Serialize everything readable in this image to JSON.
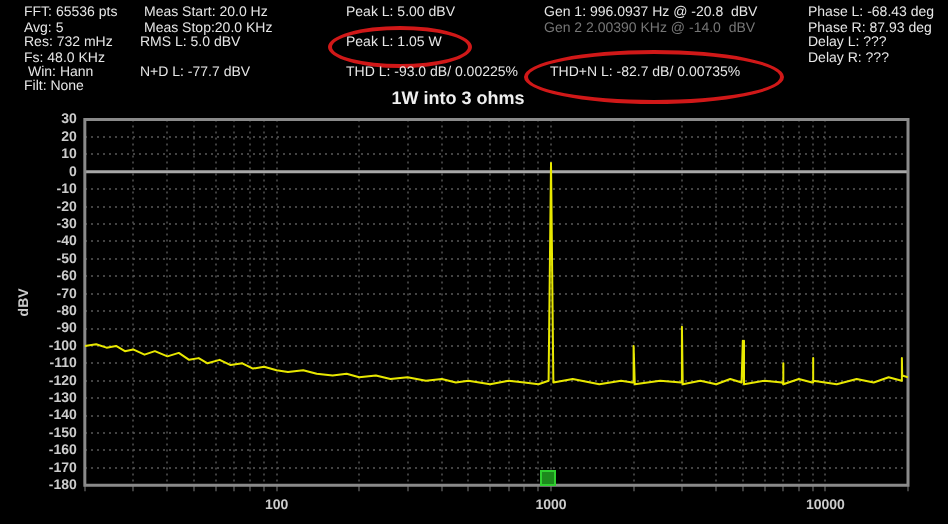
{
  "chart_data": {
    "type": "line",
    "title": "1W into 3 ohms",
    "ylabel": "dBV",
    "x": [
      20,
      22,
      24,
      26,
      28,
      30,
      33,
      36,
      40,
      44,
      48,
      52,
      56,
      62,
      68,
      75,
      82,
      90,
      100,
      110,
      125,
      140,
      160,
      180,
      200,
      230,
      260,
      300,
      350,
      400,
      450,
      500,
      600,
      700,
      800,
      900,
      980,
      1000,
      1020,
      1200,
      1500,
      1800,
      1980,
      2000,
      2020,
      2500,
      2980,
      3000,
      3020,
      3500,
      4000,
      4500,
      4950,
      5000,
      5050,
      6000,
      6950,
      7000,
      7050,
      8000,
      8950,
      9000,
      9050,
      11000,
      13000,
      15000,
      17000,
      18950,
      19000,
      19050,
      20000
    ],
    "series": [
      {
        "color": "#e8e800",
        "values": [
          -100,
          -99,
          -101,
          -100,
          -103,
          -102,
          -105,
          -103,
          -106,
          -104,
          -108,
          -107,
          -110,
          -108,
          -111,
          -110,
          -113,
          -112,
          -114,
          -115,
          -114,
          -116,
          -117,
          -116,
          -118,
          -117,
          -119,
          -118,
          -120,
          -119,
          -121,
          -120,
          -122,
          -120,
          -121,
          -122,
          -120,
          5,
          -121,
          -119,
          -122,
          -120,
          -121,
          -100,
          -122,
          -120,
          -121,
          -89,
          -122,
          -120,
          -122,
          -119,
          -121,
          -97,
          -122,
          -120,
          -121,
          -110,
          -122,
          -119,
          -121,
          -107,
          -120,
          -122,
          -119,
          -121,
          -118,
          -120,
          -107,
          -117,
          -118
        ]
      }
    ],
    "log": "x",
    "xlim": [
      20,
      20000
    ],
    "xticks": [
      {
        "value": 20,
        "label": null
      },
      {
        "value": 30,
        "label": null
      },
      {
        "value": 40,
        "label": null
      },
      {
        "value": 50,
        "label": null
      },
      {
        "value": 60,
        "label": null
      },
      {
        "value": 70,
        "label": null
      },
      {
        "value": 80,
        "label": null
      },
      {
        "value": 90,
        "label": null
      },
      100,
      {
        "value": 200,
        "label": null
      },
      {
        "value": 300,
        "label": null
      },
      {
        "value": 400,
        "label": null
      },
      {
        "value": 500,
        "label": null
      },
      {
        "value": 600,
        "label": null
      },
      {
        "value": 700,
        "label": null
      },
      {
        "value": 800,
        "label": null
      },
      {
        "value": 900,
        "label": null
      },
      1000,
      {
        "value": 2000,
        "label": null
      },
      {
        "value": 3000,
        "label": null
      },
      {
        "value": 4000,
        "label": null
      },
      {
        "value": 5000,
        "label": null
      },
      {
        "value": 6000,
        "label": null
      },
      {
        "value": 7000,
        "label": null
      },
      {
        "value": 8000,
        "label": null
      },
      {
        "value": 9000,
        "label": null
      },
      10000,
      {
        "value": 20000,
        "label": null
      }
    ],
    "ylim": [
      -180,
      30
    ],
    "yticks": [
      -180,
      -170,
      -160,
      -150,
      -140,
      -130,
      -120,
      -110,
      -100,
      -90,
      -80,
      -70,
      -60,
      -50,
      -40,
      -30,
      -20,
      -10,
      0,
      10,
      20,
      30
    ],
    "grid": true,
    "legend": false,
    "marker": "none",
    "line_style": "solid",
    "ref_lines": [
      {
        "axis": "y",
        "value": 0,
        "color": "#a8a8a8"
      }
    ],
    "annotations": [
      "FFT: 65536 pts",
      "Avg: 5",
      "Res: 732 mHz",
      "Fs: 48.0 KHz",
      "Win: Hann",
      "Filt: None",
      "Meas Start: 20.0 Hz",
      "Meas Stop:20.0 KHz",
      "RMS L: 5.0 dBV",
      "N+D L: -77.7 dBV",
      "Peak L: 5.00 dBV",
      "Peak L: 1.05 W",
      "THD L: -93.0 dB/ 0.00225%",
      "Gen 1: 996.0937 Hz @ -20.8  dBV",
      "Gen 2 2.00390 KHz @ -14.0  dBV",
      "THD+N L: -82.7 dB/ 0.00735%",
      "Phase L: -68.43 deg",
      "Phase R: 87.93 deg",
      "Delay L: ???",
      "Delay R: ???"
    ]
  }
}
